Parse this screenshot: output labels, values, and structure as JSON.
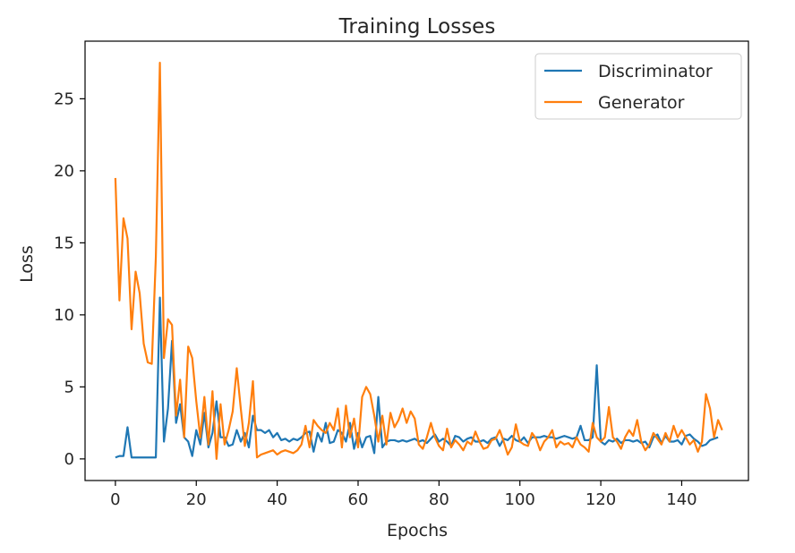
{
  "chart_data": {
    "type": "line",
    "title": "Training Losses",
    "xlabel": "Epochs",
    "ylabel": "Loss",
    "xlim": [
      -7.5,
      156.5
    ],
    "ylim": [
      -1.5,
      29
    ],
    "xticks": [
      0,
      20,
      40,
      60,
      80,
      100,
      120,
      140
    ],
    "yticks": [
      0,
      5,
      10,
      15,
      20,
      25
    ],
    "grid": false,
    "legend_position": "top-right",
    "series": [
      {
        "name": "Discriminator",
        "color": "#1f77b4",
        "values": [
          0.1,
          0.2,
          0.2,
          2.2,
          0.1,
          0.1,
          0.1,
          0.1,
          0.1,
          0.1,
          0.1,
          11.2,
          1.2,
          3.5,
          8.2,
          2.5,
          3.8,
          1.5,
          1.2,
          0.2,
          2.0,
          1.0,
          3.2,
          0.8,
          1.8,
          4.0,
          1.5,
          1.5,
          0.9,
          1.0,
          2.0,
          1.2,
          1.8,
          0.8,
          3.0,
          2.0,
          2.0,
          1.8,
          2.0,
          1.5,
          1.8,
          1.3,
          1.4,
          1.2,
          1.4,
          1.3,
          1.5,
          1.8,
          1.9,
          0.5,
          1.8,
          1.2,
          2.5,
          1.1,
          1.2,
          2.0,
          1.8,
          1.2,
          2.5,
          0.7,
          1.8,
          0.8,
          1.5,
          1.6,
          0.4,
          4.3,
          0.8,
          1.2,
          1.3,
          1.3,
          1.2,
          1.3,
          1.2,
          1.3,
          1.4,
          1.2,
          1.3,
          1.1,
          1.4,
          1.7,
          1.2,
          1.4,
          1.2,
          0.9,
          1.6,
          1.5,
          1.2,
          1.4,
          1.5,
          1.2,
          1.2,
          1.3,
          1.1,
          1.4,
          1.5,
          0.9,
          1.4,
          1.3,
          1.6,
          1.3,
          1.2,
          1.5,
          1.1,
          1.5,
          1.5,
          1.5,
          1.6,
          1.5,
          1.5,
          1.4,
          1.5,
          1.6,
          1.5,
          1.4,
          1.5,
          2.3,
          1.3,
          1.3,
          1.5,
          6.5,
          1.2,
          1.0,
          1.3,
          1.2,
          1.4,
          1.1,
          1.3,
          1.3,
          1.2,
          1.3,
          1.1,
          1.2,
          0.8,
          1.5,
          1.7,
          1.1,
          1.6,
          1.2,
          1.2,
          1.3,
          1.0,
          1.6,
          1.7,
          1.4,
          1.2,
          0.9,
          1.0,
          1.3,
          1.4,
          1.5
        ]
      },
      {
        "name": "Generator",
        "color": "#ff7f0e",
        "values": [
          19.5,
          11.0,
          16.7,
          15.3,
          9.0,
          13.0,
          11.5,
          8.0,
          6.7,
          6.6,
          14.0,
          27.5,
          7.0,
          9.7,
          9.3,
          3.0,
          5.5,
          1.5,
          7.8,
          7.0,
          4.0,
          1.5,
          4.3,
          1.0,
          4.7,
          0.0,
          3.8,
          1.0,
          2.0,
          3.3,
          6.3,
          3.5,
          0.9,
          2.5,
          5.4,
          0.1,
          0.3,
          0.4,
          0.5,
          0.6,
          0.3,
          0.5,
          0.6,
          0.5,
          0.4,
          0.6,
          1.0,
          2.3,
          0.8,
          2.7,
          2.3,
          2.0,
          1.8,
          2.5,
          2.0,
          3.5,
          0.8,
          3.7,
          1.5,
          2.8,
          0.8,
          4.3,
          5.0,
          4.5,
          3.0,
          1.2,
          3.0,
          1.0,
          3.2,
          2.2,
          2.7,
          3.5,
          2.5,
          3.3,
          2.8,
          1.0,
          0.7,
          1.5,
          2.5,
          1.5,
          0.9,
          0.6,
          2.1,
          0.8,
          1.3,
          1.0,
          0.6,
          1.2,
          1.0,
          1.9,
          1.2,
          0.7,
          0.8,
          1.3,
          1.4,
          2.0,
          1.2,
          0.3,
          0.8,
          2.4,
          1.2,
          1.0,
          0.9,
          1.8,
          1.4,
          0.6,
          1.2,
          1.5,
          2.0,
          0.8,
          1.2,
          1.0,
          1.1,
          0.8,
          1.5,
          1.0,
          0.8,
          0.5,
          2.5,
          1.5,
          1.2,
          1.5,
          3.6,
          1.5,
          1.2,
          0.7,
          1.5,
          2.0,
          1.6,
          2.7,
          1.2,
          0.6,
          1.0,
          1.8,
          1.4,
          1.0,
          1.8,
          1.2,
          2.3,
          1.5,
          2.0,
          1.5,
          1.0,
          1.3,
          0.5,
          1.2,
          4.5,
          3.5,
          1.5,
          2.7,
          2.0
        ]
      }
    ]
  }
}
